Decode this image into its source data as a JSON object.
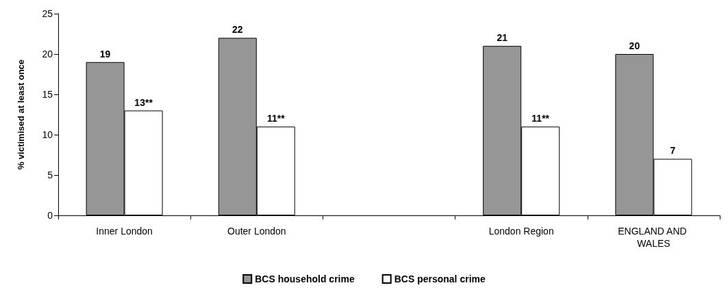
{
  "chart_data": {
    "type": "bar",
    "ylabel": "% victimised at least once",
    "categories": [
      "Inner London",
      "Outer London",
      null,
      "London Region",
      "ENGLAND AND WALES"
    ],
    "series": [
      {
        "name": "BCS household crime",
        "color": "#969696",
        "values": [
          19,
          22,
          null,
          21,
          20
        ],
        "value_labels": [
          "19",
          "22",
          null,
          "21",
          "20"
        ]
      },
      {
        "name": "BCS personal crime",
        "color": "#ffffff",
        "values": [
          13,
          11,
          null,
          11,
          7
        ],
        "value_labels": [
          "13**",
          "11**",
          null,
          "11**",
          "7"
        ]
      }
    ],
    "ylim": [
      0,
      25
    ],
    "yticks": [
      0,
      5,
      10,
      15,
      20,
      25
    ],
    "grid": false,
    "legend": "bottom"
  }
}
